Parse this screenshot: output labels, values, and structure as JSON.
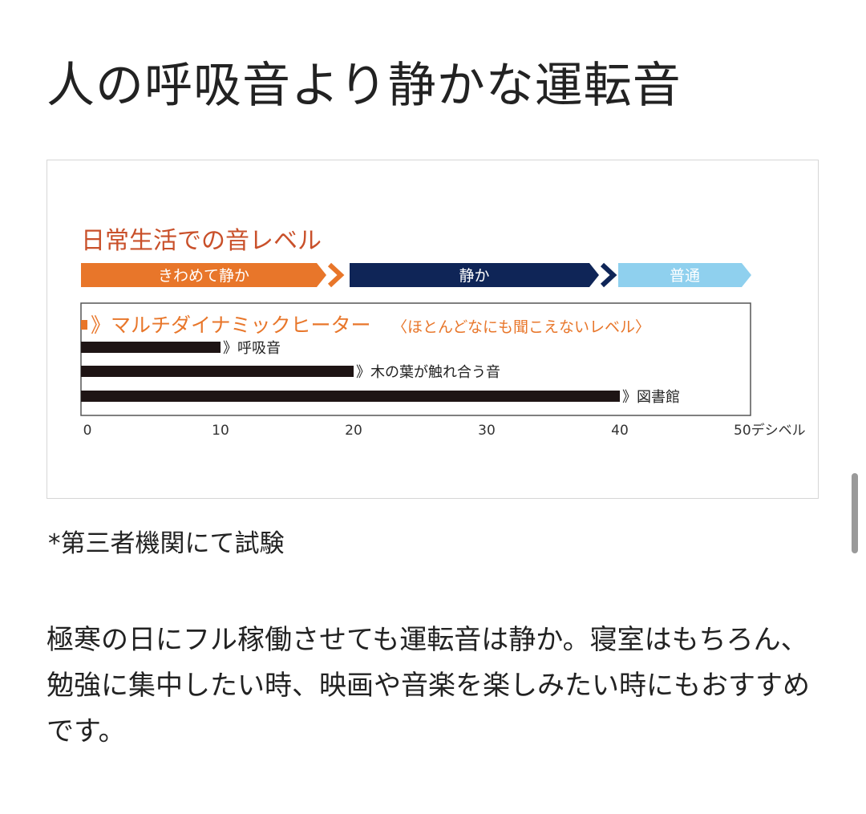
{
  "page": {
    "title": "人の呼吸音より静かな運転音",
    "note": "*第三者機関にて試験",
    "body": "極寒の日にフル稼働させても運転音は静か。寝室はもちろん、勉強に集中したい時、映画や音楽を楽しみたい時にもおすすめです。"
  },
  "chart_data": {
    "type": "bar",
    "orientation": "horizontal",
    "title": "日常生活での音レベル",
    "bands": [
      {
        "label": "きわめて静か",
        "color": "#e8762a"
      },
      {
        "label": "静か",
        "color": "#0f2557"
      },
      {
        "label": "普通",
        "color": "#8fd0ee"
      }
    ],
    "highlight": {
      "label": "》マルチダイナミックヒーター",
      "note": "〈ほとんどなにも聞こえないレベル〉",
      "color": "#e8762a"
    },
    "categories": [
      "》呼吸音",
      "》木の葉が触れ合う音",
      "》図書館"
    ],
    "values": [
      10,
      20,
      40
    ],
    "bar_color": "#1e1414",
    "xlim": [
      0,
      50
    ],
    "xticks": [
      "0",
      "10",
      "20",
      "30",
      "40",
      "50デシベル"
    ],
    "grid": false
  }
}
